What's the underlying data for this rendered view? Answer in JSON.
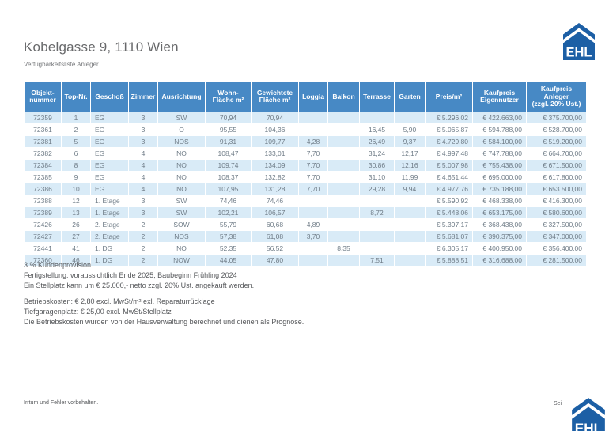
{
  "header": {
    "title": "Kobelgasse 9, 1110 Wien",
    "subtitle": "Verfügbarkeitsliste Anleger"
  },
  "logo": {
    "text": "EHL"
  },
  "table": {
    "columns": [
      "Objekt-\nnummer",
      "Top-Nr.",
      "Geschoß",
      "Zimmer",
      "Ausrichtung",
      "Wohn-\nFläche m²",
      "Gewichtete\nFläche m²",
      "Loggia",
      "Balkon",
      "Terrasse",
      "Garten",
      "Preis/m²",
      "Kaufpreis\nEigennutzer",
      "Kaufpreis\nAnleger\n(zzgl. 20% Ust.)"
    ],
    "rows": [
      [
        "72359",
        "1",
        "EG",
        "3",
        "SW",
        "70,94",
        "70,94",
        "",
        "",
        "",
        "",
        "€ 5.296,02",
        "€ 422.663,00",
        "€ 375.700,00"
      ],
      [
        "72361",
        "2",
        "EG",
        "3",
        "O",
        "95,55",
        "104,36",
        "",
        "",
        "16,45",
        "5,90",
        "€ 5.065,87",
        "€ 594.788,00",
        "€ 528.700,00"
      ],
      [
        "72381",
        "5",
        "EG",
        "3",
        "NOS",
        "91,31",
        "109,77",
        "4,28",
        "",
        "26,49",
        "9,37",
        "€ 4.729,80",
        "€ 584.100,00",
        "€ 519.200,00"
      ],
      [
        "72382",
        "6",
        "EG",
        "4",
        "NO",
        "108,47",
        "133,01",
        "7,70",
        "",
        "31,24",
        "12,17",
        "€ 4.997,48",
        "€ 747.788,00",
        "€ 664.700,00"
      ],
      [
        "72384",
        "8",
        "EG",
        "4",
        "NO",
        "109,74",
        "134,09",
        "7,70",
        "",
        "30,86",
        "12,16",
        "€ 5.007,98",
        "€ 755.438,00",
        "€ 671.500,00"
      ],
      [
        "72385",
        "9",
        "EG",
        "4",
        "NO",
        "108,37",
        "132,82",
        "7,70",
        "",
        "31,10",
        "11,99",
        "€ 4.651,44",
        "€ 695.000,00",
        "€ 617.800,00"
      ],
      [
        "72386",
        "10",
        "EG",
        "4",
        "NO",
        "107,95",
        "131,28",
        "7,70",
        "",
        "29,28",
        "9,94",
        "€ 4.977,76",
        "€ 735.188,00",
        "€ 653.500,00"
      ],
      [
        "72388",
        "12",
        "1. Etage",
        "3",
        "SW",
        "74,46",
        "74,46",
        "",
        "",
        "",
        "",
        "€ 5.590,92",
        "€ 468.338,00",
        "€ 416.300,00"
      ],
      [
        "72389",
        "13",
        "1. Etage",
        "3",
        "SW",
        "102,21",
        "106,57",
        "",
        "",
        "8,72",
        "",
        "€ 5.448,06",
        "€ 653.175,00",
        "€ 580.600,00"
      ],
      [
        "72426",
        "26",
        "2. Etage",
        "2",
        "SOW",
        "55,79",
        "60,68",
        "4,89",
        "",
        "",
        "",
        "€ 5.397,17",
        "€ 368.438,00",
        "€ 327.500,00"
      ],
      [
        "72427",
        "27",
        "2. Etage",
        "2",
        "NOS",
        "57,38",
        "61,08",
        "3,70",
        "",
        "",
        "",
        "€ 5.681,07",
        "€ 390.375,00",
        "€ 347.000,00"
      ],
      [
        "72441",
        "41",
        "1. DG",
        "2",
        "NO",
        "52,35",
        "56,52",
        "",
        "8,35",
        "",
        "",
        "€ 6.305,17",
        "€ 400.950,00",
        "€ 356.400,00"
      ],
      [
        "72360",
        "46",
        "1. DG",
        "2",
        "NOW",
        "44,05",
        "47,80",
        "",
        "",
        "7,51",
        "",
        "€ 5.888,51",
        "€ 316.688,00",
        "€ 281.500,00"
      ]
    ]
  },
  "notes_block_1": [
    "3 % Kundenprovision",
    "Fertigstellung: voraussichtlich Ende 2025, Baubeginn Frühling 2024",
    "Ein Stellplatz kann um € 25.000,- netto zzgl. 20% Ust. angekauft werden."
  ],
  "notes_block_2": [
    "Betriebskosten: € 2,80 excl. MwSt/m² exl. Reparaturrücklage",
    "Tiefgaragenplatz: € 25,00 excl. MwSt/Stellplatz",
    "Die Betriebskosten wurden von der Hausverwaltung berechnet und dienen als Prognose."
  ],
  "footer": {
    "left": "Irrtum und Fehler vorbehalten.",
    "right_partial": "Sei"
  },
  "colors": {
    "header_bg": "#4789C5",
    "row_stripe": "#D9EBF7",
    "logo_blue": "#1C5FA5",
    "table_text": "#6F7C87"
  }
}
